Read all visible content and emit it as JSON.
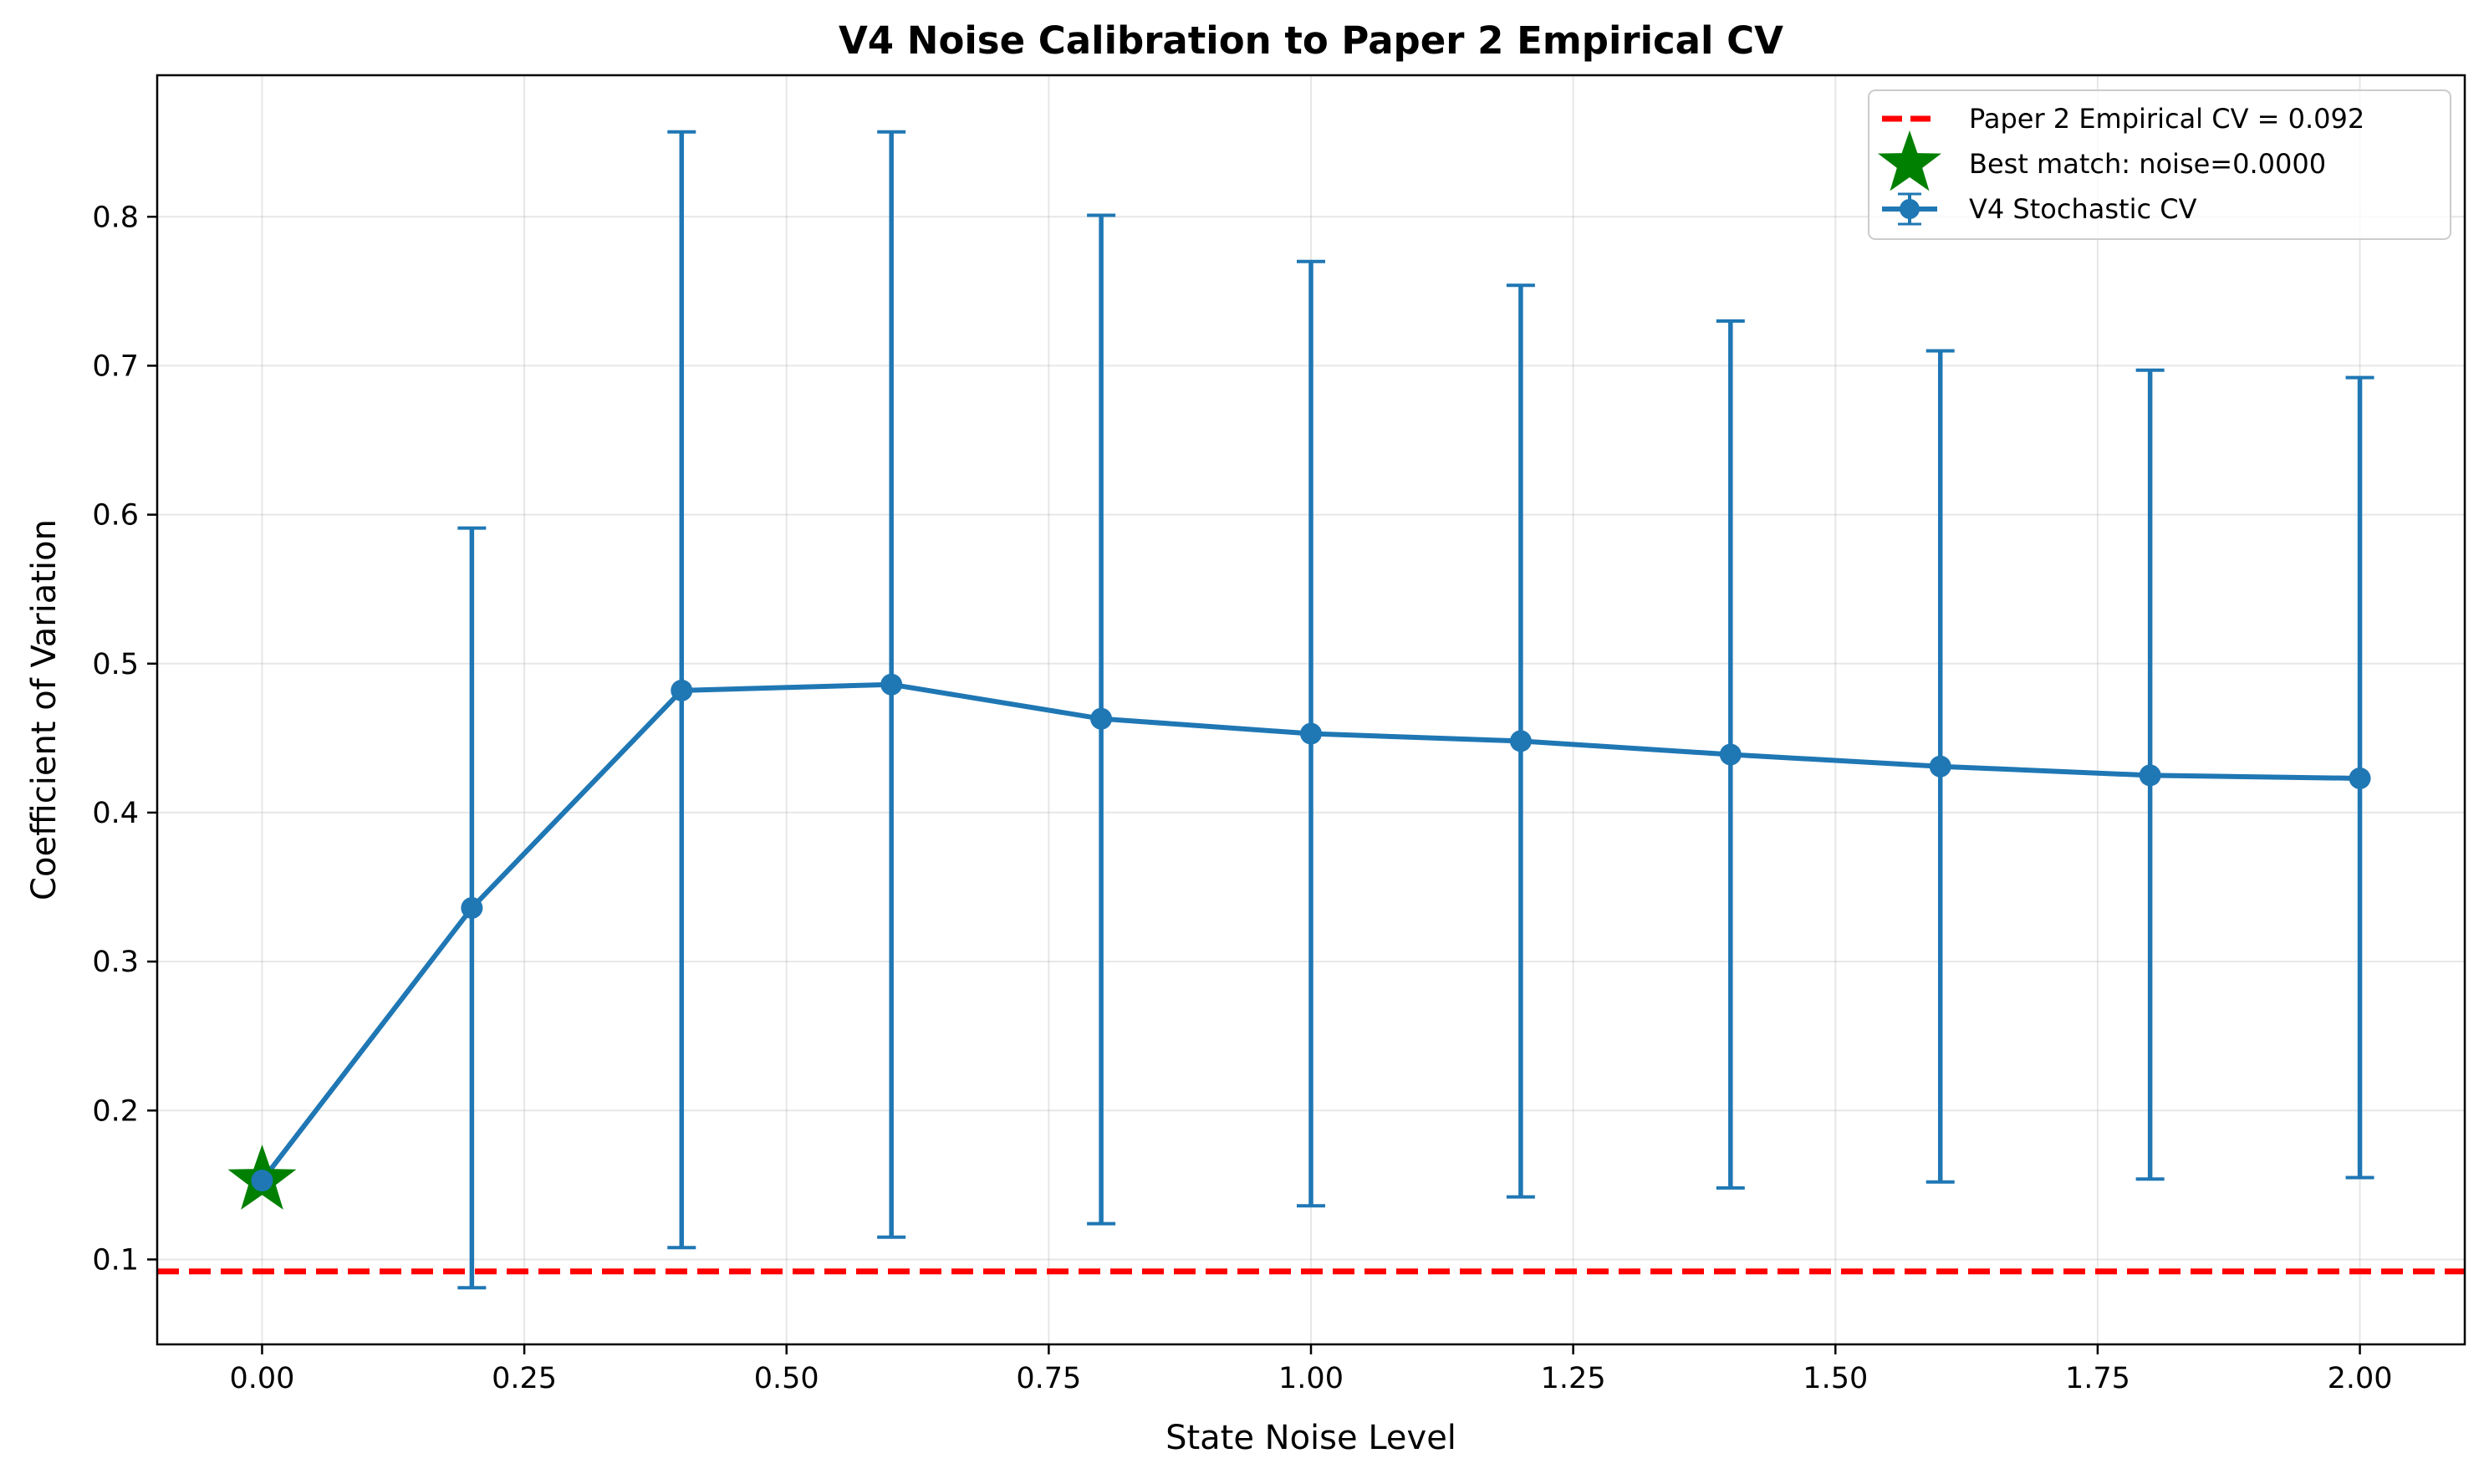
{
  "chart_data": {
    "type": "line",
    "title": "V4 Noise Calibration to Paper 2 Empirical CV",
    "xlabel": "State Noise Level",
    "ylabel": "Coefficient of Variation",
    "xlim": [
      -0.1,
      2.1
    ],
    "ylim": [
      0.043,
      0.895
    ],
    "x_ticks": [
      0.0,
      0.25,
      0.5,
      0.75,
      1.0,
      1.25,
      1.5,
      1.75,
      2.0
    ],
    "x_tick_labels": [
      "0.00",
      "0.25",
      "0.50",
      "0.75",
      "1.00",
      "1.25",
      "1.50",
      "1.75",
      "2.00"
    ],
    "y_ticks": [
      0.1,
      0.2,
      0.3,
      0.4,
      0.5,
      0.6,
      0.7,
      0.8
    ],
    "y_tick_labels": [
      "0.1",
      "0.2",
      "0.3",
      "0.4",
      "0.5",
      "0.6",
      "0.7",
      "0.8"
    ],
    "grid": true,
    "legend_position": "top-right",
    "series": [
      {
        "name": "V4 Stochastic CV",
        "kind": "line-errorbar",
        "color": "#1f77b4",
        "x": [
          0.0,
          0.2,
          0.4,
          0.6,
          0.8,
          1.0,
          1.2,
          1.4,
          1.6,
          1.8,
          2.0
        ],
        "y": [
          0.153,
          0.336,
          0.482,
          0.486,
          0.463,
          0.453,
          0.448,
          0.439,
          0.431,
          0.425,
          0.423
        ],
        "y_err_low": [
          0.153,
          0.081,
          0.108,
          0.115,
          0.124,
          0.136,
          0.142,
          0.148,
          0.152,
          0.154,
          0.155
        ],
        "y_err_high": [
          0.153,
          0.591,
          0.857,
          0.857,
          0.801,
          0.77,
          0.754,
          0.73,
          0.71,
          0.697,
          0.692
        ]
      },
      {
        "name": "Paper 2 Empirical CV = 0.092",
        "kind": "hline",
        "color": "#ff0000",
        "y": 0.092
      },
      {
        "name": "Best match: noise=0.0000",
        "kind": "marker",
        "color": "#008000",
        "x": 0.0,
        "y": 0.153
      }
    ]
  }
}
